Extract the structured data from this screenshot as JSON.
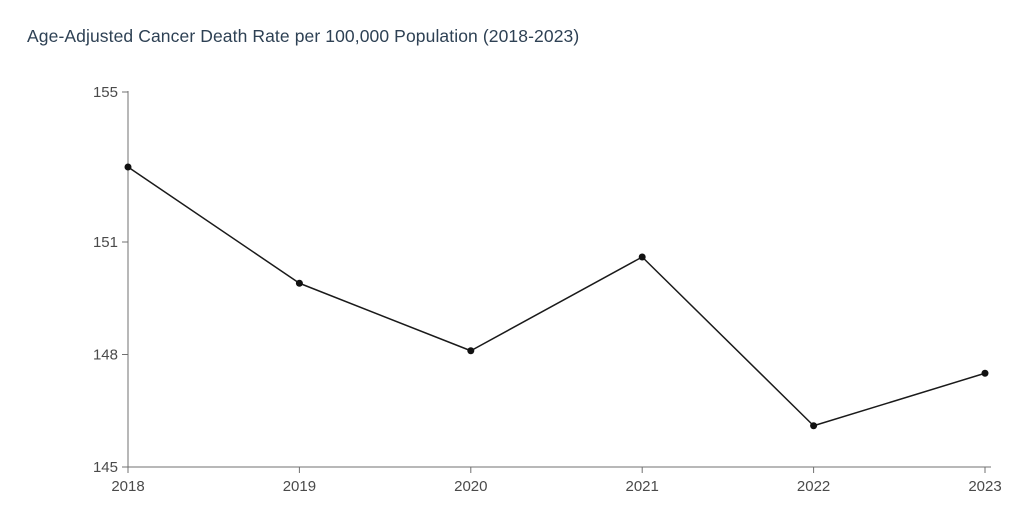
{
  "chart_data": {
    "type": "line",
    "title": "Age-Adjusted Cancer Death Rate per 100,000 Population (2018-2023)",
    "x": [
      "2018",
      "2019",
      "2020",
      "2021",
      "2022",
      "2023"
    ],
    "series": [
      {
        "name": "Age-adjusted cancer death rate per 100,000",
        "values": [
          153.0,
          149.9,
          148.1,
          150.6,
          146.1,
          147.5
        ]
      }
    ],
    "xlabel": "",
    "ylabel": "",
    "ylim": [
      145,
      155
    ],
    "yticks": [
      145,
      148,
      151,
      155
    ],
    "grid": false,
    "legend_position": "none",
    "marker": "circle"
  },
  "colors": {
    "line": "#1a1a1a",
    "marker": "#111111",
    "axis": "#707070",
    "tick_label": "#4a4a4a",
    "title": "#2e4154",
    "background": "#ffffff"
  }
}
